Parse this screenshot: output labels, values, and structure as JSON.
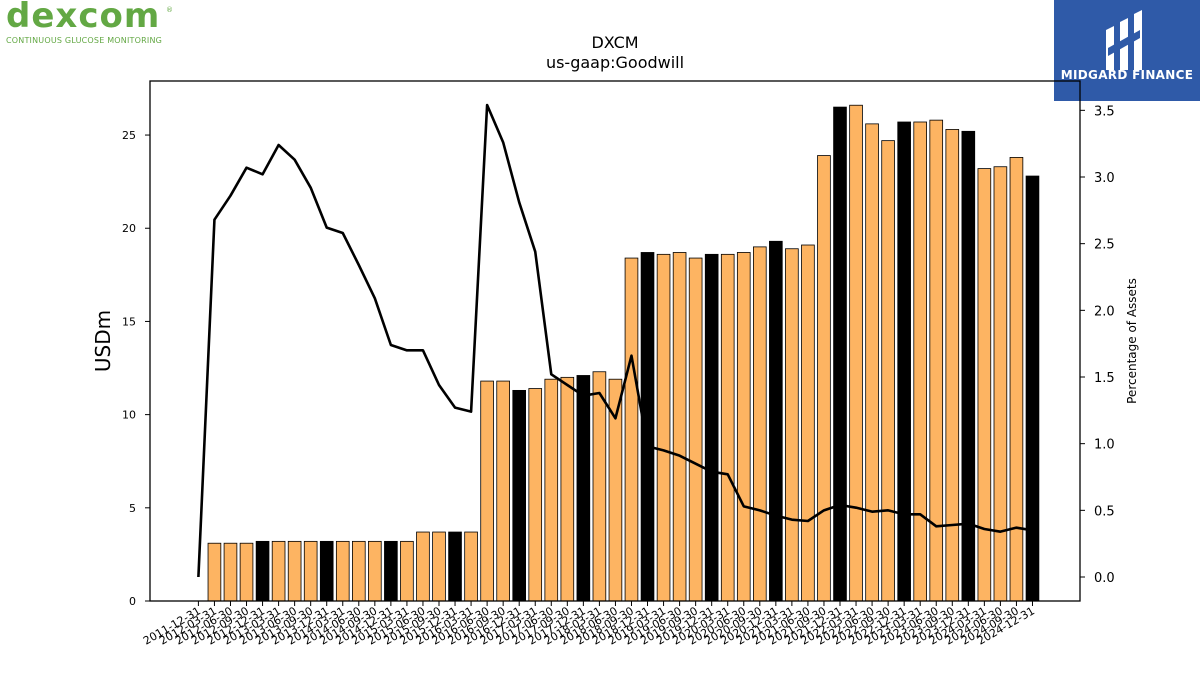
{
  "logos": {
    "left_word": "dexcom",
    "left_reg": "®",
    "left_tagline": "CONTINUOUS GLUCOSE MONITORING",
    "right_text": "MIDGARD FINANCE"
  },
  "chart_data": {
    "type": "bar",
    "title": "DXCM",
    "subtitle": "us-gaap:Goodwill",
    "ylabel": "USDm",
    "y2label": "Percentage of Assets",
    "ylim": [
      0,
      27.9
    ],
    "y2lim": [
      -0.18,
      3.72
    ],
    "yticks": [
      0,
      5,
      10,
      15,
      20,
      25
    ],
    "y2ticks": [
      "0.0",
      "0.5",
      "1.0",
      "1.5",
      "2.0",
      "2.5",
      "3.0",
      "3.5"
    ],
    "colors": {
      "bar": "#fdb462",
      "bar_highlight": "#000000",
      "line": "#000000"
    },
    "categories": [
      "2011-12-31",
      "2012-03-31",
      "2012-06-30",
      "2012-09-30",
      "2012-12-31",
      "2013-03-31",
      "2013-06-30",
      "2013-09-30",
      "2013-12-31",
      "2014-03-31",
      "2014-06-30",
      "2014-09-30",
      "2014-12-31",
      "2015-03-31",
      "2015-06-30",
      "2015-09-30",
      "2015-12-31",
      "2016-03-31",
      "2016-06-30",
      "2016-09-30",
      "2016-12-31",
      "2017-03-31",
      "2017-06-30",
      "2017-09-30",
      "2017-12-31",
      "2018-03-31",
      "2018-06-30",
      "2018-09-30",
      "2018-12-31",
      "2019-03-31",
      "2019-06-30",
      "2019-09-30",
      "2019-12-31",
      "2020-03-31",
      "2020-06-30",
      "2020-09-30",
      "2020-12-31",
      "2021-03-31",
      "2021-06-30",
      "2021-09-30",
      "2021-12-31",
      "2022-03-31",
      "2022-06-30",
      "2022-09-30",
      "2022-12-31",
      "2023-03-31",
      "2023-06-30",
      "2023-09-30",
      "2023-12-31",
      "2024-03-31",
      "2024-06-30",
      "2024-09-30",
      "2024-12-31"
    ],
    "series": [
      {
        "type": "bar",
        "values": [
          0,
          3.1,
          3.1,
          3.1,
          3.2,
          3.2,
          3.2,
          3.2,
          3.2,
          3.2,
          3.2,
          3.2,
          3.2,
          3.2,
          3.7,
          3.7,
          3.7,
          3.7,
          11.8,
          11.8,
          11.3,
          11.4,
          11.9,
          12.0,
          12.1,
          12.3,
          11.9,
          18.4,
          18.7,
          18.6,
          18.7,
          18.4,
          18.6,
          18.6,
          18.7,
          19.0,
          19.3,
          18.9,
          19.1,
          23.9,
          26.5,
          26.6,
          25.6,
          24.7,
          25.7,
          25.7,
          25.8,
          25.3,
          25.2,
          23.2,
          23.3,
          23.8,
          22.8
        ],
        "highlight": [
          false,
          false,
          false,
          false,
          true,
          false,
          false,
          false,
          true,
          false,
          false,
          false,
          true,
          false,
          false,
          false,
          true,
          false,
          false,
          false,
          true,
          false,
          false,
          false,
          true,
          false,
          false,
          false,
          true,
          false,
          false,
          false,
          true,
          false,
          false,
          false,
          true,
          false,
          false,
          false,
          true,
          false,
          false,
          false,
          true,
          false,
          false,
          false,
          true,
          false,
          false,
          false,
          true
        ]
      },
      {
        "type": "line",
        "axis": "right",
        "values": [
          0.0,
          2.68,
          2.86,
          3.07,
          3.02,
          3.24,
          3.13,
          2.92,
          2.62,
          2.58,
          2.34,
          2.09,
          1.74,
          1.7,
          1.7,
          1.44,
          1.27,
          1.24,
          3.54,
          3.26,
          2.81,
          2.44,
          1.52,
          1.44,
          1.36,
          1.38,
          1.19,
          1.66,
          0.98,
          0.95,
          0.91,
          0.85,
          0.79,
          0.77,
          0.53,
          0.5,
          0.46,
          0.43,
          0.42,
          0.5,
          0.54,
          0.52,
          0.49,
          0.5,
          0.47,
          0.47,
          0.38,
          0.39,
          0.4,
          0.36,
          0.34,
          0.37,
          0.35
        ]
      }
    ]
  }
}
